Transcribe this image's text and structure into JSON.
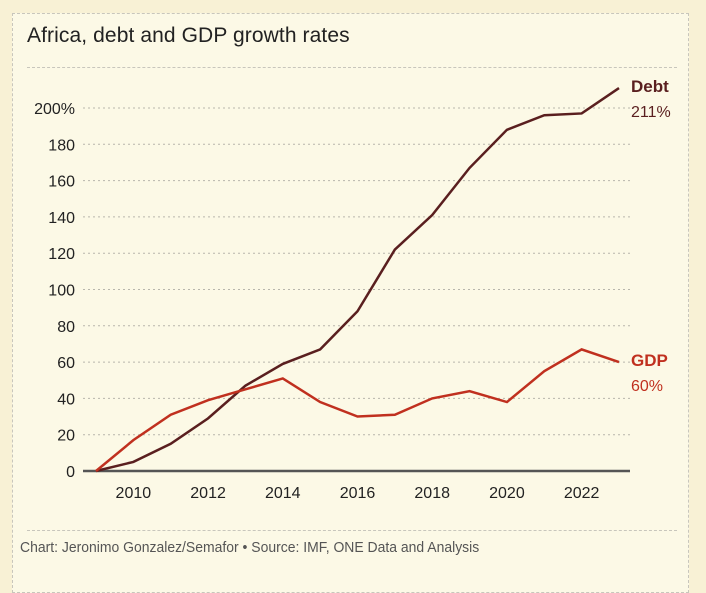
{
  "chart_data": {
    "type": "line",
    "title": "Africa, debt and GDP growth rates",
    "xlabel": "",
    "ylabel": "",
    "x": [
      2009,
      2010,
      2011,
      2012,
      2013,
      2014,
      2015,
      2016,
      2017,
      2018,
      2019,
      2020,
      2021,
      2022,
      2023
    ],
    "xlim": [
      2009,
      2023
    ],
    "ylim": [
      0,
      200
    ],
    "grid": true,
    "x_ticks": [
      2010,
      2012,
      2014,
      2016,
      2018,
      2020,
      2022
    ],
    "x_tick_labels": [
      "2010",
      "2012",
      "2014",
      "2016",
      "2018",
      "2020",
      "2022"
    ],
    "y_ticks": [
      0,
      20,
      40,
      60,
      80,
      100,
      120,
      140,
      160,
      180,
      200
    ],
    "y_tick_labels": [
      "0",
      "20",
      "40",
      "60",
      "80",
      "100",
      "120",
      "140",
      "160",
      "180",
      "200%"
    ],
    "series": [
      {
        "name": "Debt",
        "color": "#5a1f1f",
        "end_label": "211%",
        "values": [
          0,
          5,
          15,
          29,
          47,
          59,
          67,
          88,
          122,
          141,
          167,
          188,
          196,
          197,
          211
        ]
      },
      {
        "name": "GDP",
        "color": "#c0301f",
        "end_label": "60%",
        "values": [
          0,
          17,
          31,
          39,
          45,
          51,
          38,
          30,
          31,
          40,
          44,
          38,
          55,
          67,
          60
        ]
      }
    ],
    "legend": "inline-right",
    "source": "Chart: Jeronimo Gonzalez/Semafor • Source: IMF, ONE Data and Analysis"
  },
  "colors": {
    "background": "#f8f1d5",
    "panel": "#fcf9e6",
    "debt": "#5a1f1f",
    "gdp": "#c0301f",
    "axis": "#555555",
    "grid": "#b8b6ac"
  }
}
